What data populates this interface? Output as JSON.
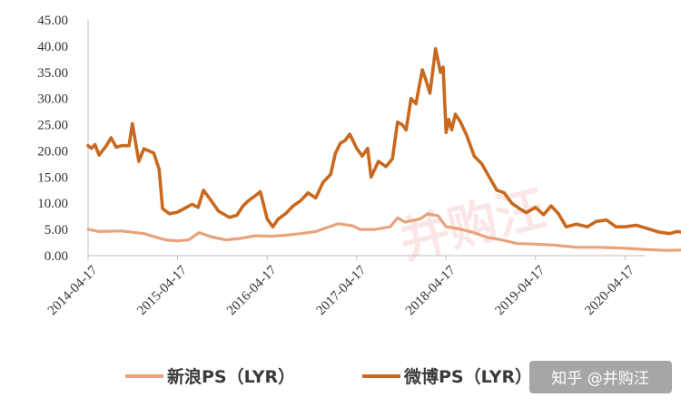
{
  "chart_data": {
    "type": "line",
    "title": "",
    "xlabel": "",
    "ylabel": "",
    "ylim": [
      0,
      45
    ],
    "yticks": [
      "0.00",
      "5.00",
      "10.00",
      "15.00",
      "20.00",
      "25.00",
      "30.00",
      "35.00",
      "40.00",
      "45.00"
    ],
    "xlim": [
      "2014-04-17",
      "2021-01-15"
    ],
    "xticks": [
      "2014-04-17",
      "2015-04-17",
      "2016-04-17",
      "2017-04-17",
      "2018-04-17",
      "2019-04-17",
      "2020-04-17"
    ],
    "grid": false,
    "legend_position": "bottom",
    "series": [
      {
        "name": "新浪PS（LYR）",
        "color": "#e8a27c",
        "points": [
          [
            "2014-04-17",
            5.0
          ],
          [
            "2014-06-01",
            4.6
          ],
          [
            "2014-09-01",
            4.7
          ],
          [
            "2014-12-01",
            4.2
          ],
          [
            "2015-01-20",
            3.5
          ],
          [
            "2015-03-01",
            3.0
          ],
          [
            "2015-04-17",
            2.8
          ],
          [
            "2015-06-01",
            3.0
          ],
          [
            "2015-07-15",
            4.4
          ],
          [
            "2015-09-01",
            3.6
          ],
          [
            "2015-11-01",
            3.0
          ],
          [
            "2016-01-01",
            3.3
          ],
          [
            "2016-03-01",
            3.8
          ],
          [
            "2016-05-01",
            3.7
          ],
          [
            "2016-07-01",
            3.9
          ],
          [
            "2016-09-01",
            4.2
          ],
          [
            "2016-11-01",
            4.6
          ],
          [
            "2017-01-01",
            5.6
          ],
          [
            "2017-02-01",
            6.1
          ],
          [
            "2017-04-01",
            5.7
          ],
          [
            "2017-05-01",
            5.0
          ],
          [
            "2017-07-01",
            5.0
          ],
          [
            "2017-09-01",
            5.5
          ],
          [
            "2017-10-01",
            7.2
          ],
          [
            "2017-11-01",
            6.4
          ],
          [
            "2018-01-01",
            7.0
          ],
          [
            "2018-02-01",
            8.0
          ],
          [
            "2018-03-15",
            7.6
          ],
          [
            "2018-04-17",
            5.5
          ],
          [
            "2018-06-01",
            5.2
          ],
          [
            "2018-08-01",
            4.5
          ],
          [
            "2018-10-01",
            3.5
          ],
          [
            "2018-12-01",
            3.0
          ],
          [
            "2019-02-01",
            2.3
          ],
          [
            "2019-04-17",
            2.2
          ],
          [
            "2019-07-01",
            2.0
          ],
          [
            "2019-10-01",
            1.6
          ],
          [
            "2020-01-01",
            1.6
          ],
          [
            "2020-04-17",
            1.4
          ],
          [
            "2020-07-01",
            1.2
          ],
          [
            "2020-10-01",
            1.0
          ],
          [
            "2021-01-15",
            1.1
          ]
        ]
      },
      {
        "name": "微博PS（LYR）",
        "color": "#c8691f",
        "points": [
          [
            "2014-04-17",
            21.0
          ],
          [
            "2014-05-01",
            20.5
          ],
          [
            "2014-05-15",
            21.2
          ],
          [
            "2014-06-01",
            19.2
          ],
          [
            "2014-07-01",
            21.0
          ],
          [
            "2014-07-20",
            22.5
          ],
          [
            "2014-08-10",
            20.7
          ],
          [
            "2014-09-01",
            21.0
          ],
          [
            "2014-10-01",
            21.0
          ],
          [
            "2014-10-15",
            25.2
          ],
          [
            "2014-11-10",
            18.0
          ],
          [
            "2014-12-01",
            20.4
          ],
          [
            "2015-01-10",
            19.6
          ],
          [
            "2015-02-01",
            16.5
          ],
          [
            "2015-02-15",
            9.0
          ],
          [
            "2015-03-15",
            8.0
          ],
          [
            "2015-04-17",
            8.3
          ],
          [
            "2015-05-15",
            9.0
          ],
          [
            "2015-06-15",
            9.8
          ],
          [
            "2015-07-10",
            9.2
          ],
          [
            "2015-08-01",
            12.5
          ],
          [
            "2015-09-01",
            10.5
          ],
          [
            "2015-10-01",
            8.5
          ],
          [
            "2015-11-15",
            7.3
          ],
          [
            "2015-12-15",
            7.7
          ],
          [
            "2016-01-10",
            9.5
          ],
          [
            "2016-02-01",
            10.5
          ],
          [
            "2016-03-01",
            11.5
          ],
          [
            "2016-03-20",
            12.2
          ],
          [
            "2016-04-17",
            7.0
          ],
          [
            "2016-05-10",
            5.5
          ],
          [
            "2016-06-01",
            7.0
          ],
          [
            "2016-07-01",
            8.0
          ],
          [
            "2016-08-01",
            9.5
          ],
          [
            "2016-09-01",
            10.5
          ],
          [
            "2016-10-01",
            12.0
          ],
          [
            "2016-11-01",
            11.0
          ],
          [
            "2016-12-01",
            14.0
          ],
          [
            "2017-01-01",
            15.5
          ],
          [
            "2017-01-20",
            19.5
          ],
          [
            "2017-02-10",
            21.5
          ],
          [
            "2017-03-01",
            22.0
          ],
          [
            "2017-03-20",
            23.2
          ],
          [
            "2017-04-17",
            20.5
          ],
          [
            "2017-05-10",
            19.0
          ],
          [
            "2017-06-01",
            20.5
          ],
          [
            "2017-06-15",
            15.0
          ],
          [
            "2017-07-15",
            18.0
          ],
          [
            "2017-08-15",
            17.0
          ],
          [
            "2017-09-10",
            18.5
          ],
          [
            "2017-10-01",
            25.5
          ],
          [
            "2017-10-20",
            25.0
          ],
          [
            "2017-11-05",
            24.0
          ],
          [
            "2017-11-25",
            30.0
          ],
          [
            "2017-12-15",
            29.0
          ],
          [
            "2018-01-10",
            35.5
          ],
          [
            "2018-01-25",
            33.5
          ],
          [
            "2018-02-10",
            31.0
          ],
          [
            "2018-03-05",
            39.5
          ],
          [
            "2018-03-25",
            35.0
          ],
          [
            "2018-04-05",
            36.0
          ],
          [
            "2018-04-17",
            23.5
          ],
          [
            "2018-04-28",
            26.0
          ],
          [
            "2018-05-10",
            24.0
          ],
          [
            "2018-05-25",
            27.0
          ],
          [
            "2018-06-15",
            25.5
          ],
          [
            "2018-07-10",
            23.0
          ],
          [
            "2018-08-10",
            19.0
          ],
          [
            "2018-09-10",
            17.5
          ],
          [
            "2018-10-10",
            15.0
          ],
          [
            "2018-11-10",
            12.5
          ],
          [
            "2018-12-10",
            12.0
          ],
          [
            "2019-01-10",
            10.0
          ],
          [
            "2019-02-10",
            9.0
          ],
          [
            "2019-03-10",
            8.2
          ],
          [
            "2019-04-17",
            9.2
          ],
          [
            "2019-05-20",
            7.8
          ],
          [
            "2019-06-20",
            9.5
          ],
          [
            "2019-07-20",
            8.0
          ],
          [
            "2019-08-20",
            5.5
          ],
          [
            "2019-10-01",
            6.0
          ],
          [
            "2019-11-15",
            5.5
          ],
          [
            "2019-12-20",
            6.5
          ],
          [
            "2020-02-01",
            6.8
          ],
          [
            "2020-03-10",
            5.5
          ],
          [
            "2020-04-17",
            5.5
          ],
          [
            "2020-06-01",
            5.8
          ],
          [
            "2020-07-15",
            5.2
          ],
          [
            "2020-09-01",
            4.5
          ],
          [
            "2020-10-15",
            4.2
          ],
          [
            "2020-11-15",
            4.6
          ],
          [
            "2020-12-15",
            4.4
          ],
          [
            "2021-01-15",
            5.3
          ]
        ]
      }
    ]
  },
  "watermark": {
    "text": "并购汪",
    "color": "#e86a6a"
  },
  "credit": {
    "text": "知乎 @并购汪"
  }
}
